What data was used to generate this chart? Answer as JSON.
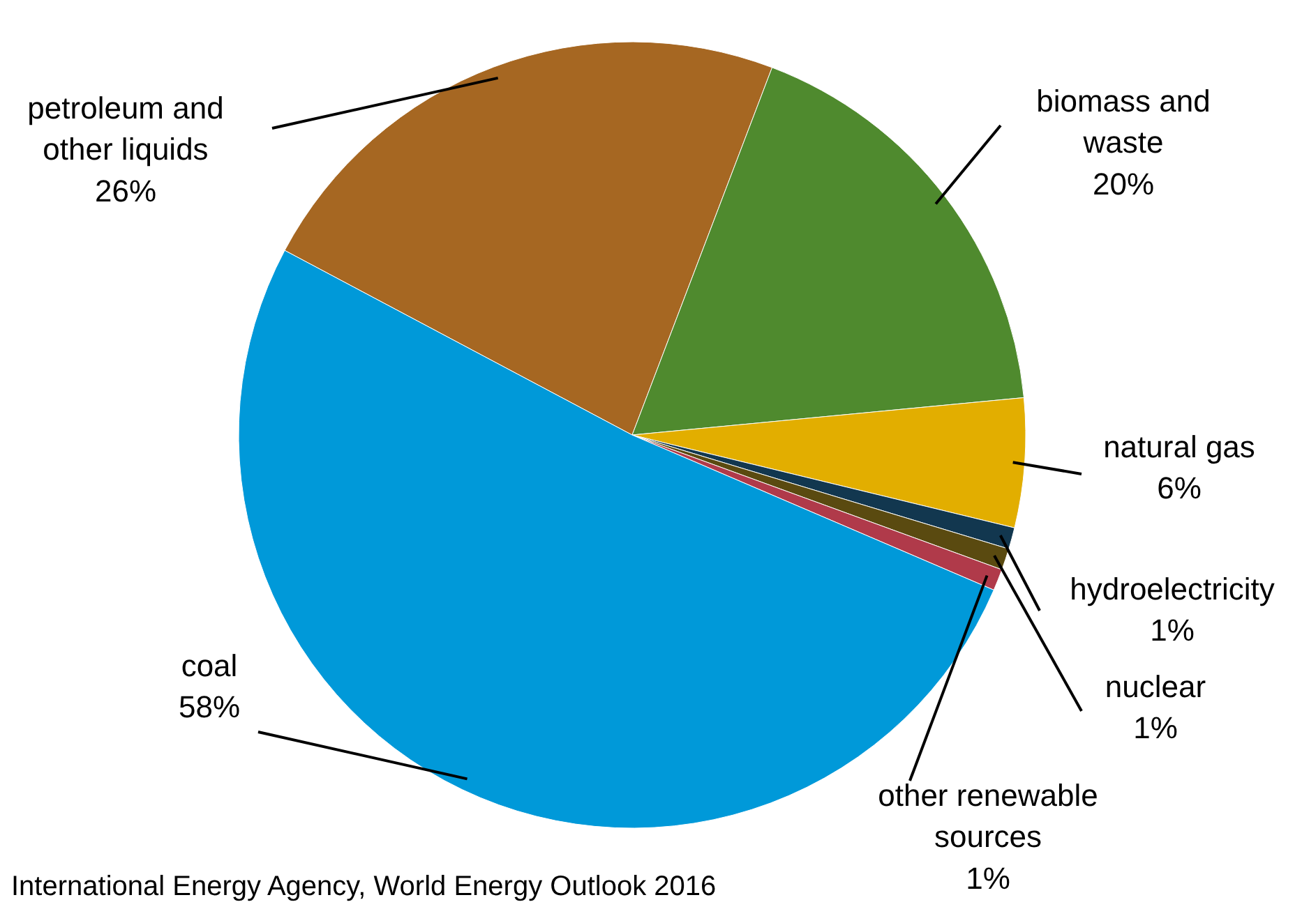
{
  "chart_data": {
    "type": "pie",
    "categories": [
      "petroleum and other liquids",
      "biomass and waste",
      "natural gas",
      "hydroelectricity",
      "nuclear",
      "other renewable sources",
      "coal"
    ],
    "values": [
      26,
      20,
      6,
      1,
      1,
      1,
      58
    ],
    "value_labels": [
      "26%",
      "20%",
      "6%",
      "1%",
      "1%",
      "1%",
      "58%"
    ],
    "colors": [
      "#a66722",
      "#4f8a2e",
      "#e2ae00",
      "#12374f",
      "#5a4a10",
      "#b03a4a",
      "#0099d9"
    ],
    "annotations": [
      "International Energy Agency, World Energy Outlook 2016"
    ]
  }
}
